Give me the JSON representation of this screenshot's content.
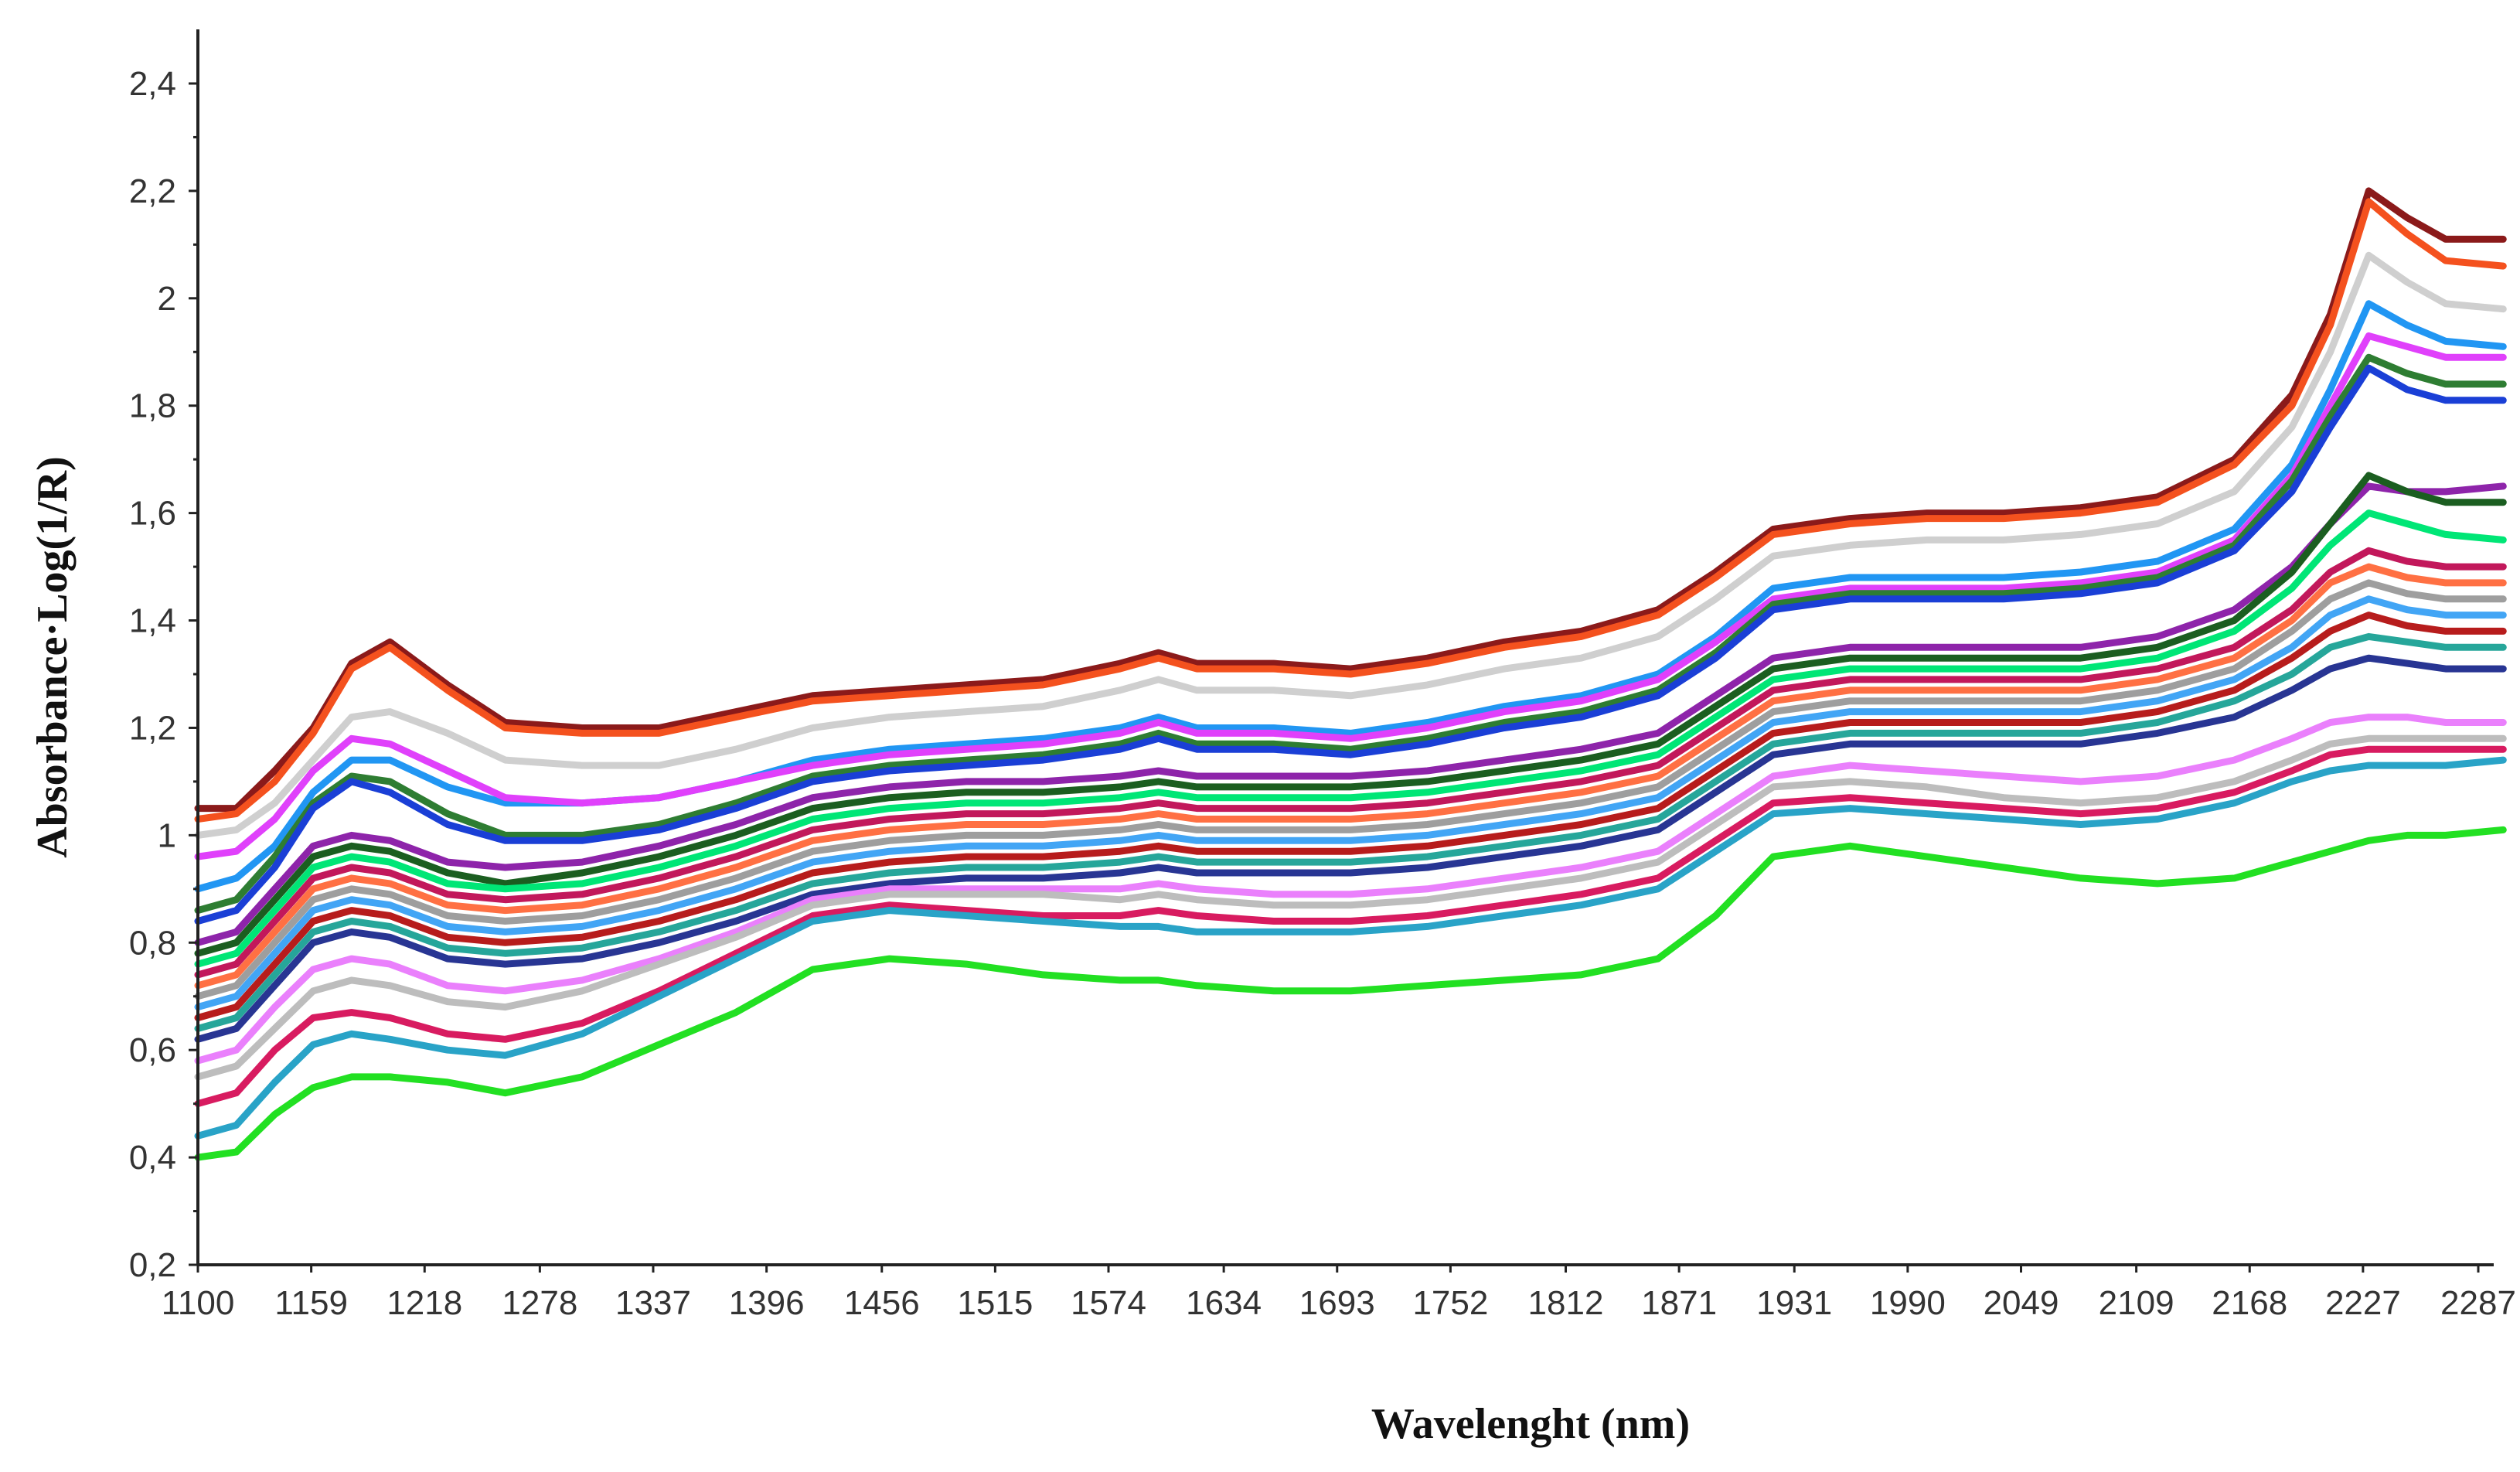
{
  "chart_data": {
    "type": "line",
    "title": "",
    "xlabel": "Wavelenght (nm)",
    "ylabel": "Absorbance·Log(1/R)",
    "x_tick_labels": [
      "1100",
      "1159",
      "1218",
      "1278",
      "1337",
      "1396",
      "1456",
      "1515",
      "1574",
      "1634",
      "1693",
      "1752",
      "1812",
      "1871",
      "1931",
      "1990",
      "2049",
      "2109",
      "2168",
      "2227",
      "2287"
    ],
    "y_tick_labels": [
      "0,2",
      "0,4",
      "0,6",
      "0,8",
      "1",
      "1,2",
      "1,4",
      "1,6",
      "1,8",
      "2",
      "2,2",
      "2,4"
    ],
    "xlim": [
      1100,
      2300
    ],
    "ylim": [
      0.2,
      2.5
    ],
    "grid": false,
    "legend": "none",
    "x": [
      1100,
      1120,
      1140,
      1160,
      1180,
      1200,
      1230,
      1260,
      1300,
      1340,
      1380,
      1420,
      1460,
      1500,
      1540,
      1580,
      1600,
      1620,
      1660,
      1700,
      1740,
      1780,
      1820,
      1860,
      1890,
      1920,
      1960,
      2000,
      2040,
      2080,
      2120,
      2160,
      2190,
      2210,
      2230,
      2250,
      2270,
      2300
    ],
    "series": [
      {
        "color": "#8b1a1a",
        "values": [
          1.05,
          1.05,
          1.12,
          1.2,
          1.32,
          1.36,
          1.28,
          1.21,
          1.2,
          1.2,
          1.23,
          1.26,
          1.27,
          1.28,
          1.29,
          1.32,
          1.34,
          1.32,
          1.32,
          1.31,
          1.33,
          1.36,
          1.38,
          1.42,
          1.49,
          1.57,
          1.59,
          1.6,
          1.6,
          1.61,
          1.63,
          1.7,
          1.82,
          1.97,
          2.2,
          2.15,
          2.11,
          2.11
        ]
      },
      {
        "color": "#f4511e",
        "values": [
          1.03,
          1.04,
          1.1,
          1.19,
          1.31,
          1.35,
          1.27,
          1.2,
          1.19,
          1.19,
          1.22,
          1.25,
          1.26,
          1.27,
          1.28,
          1.31,
          1.33,
          1.31,
          1.31,
          1.3,
          1.32,
          1.35,
          1.37,
          1.41,
          1.48,
          1.56,
          1.58,
          1.59,
          1.59,
          1.6,
          1.62,
          1.69,
          1.8,
          1.95,
          2.18,
          2.12,
          2.07,
          2.06
        ]
      },
      {
        "color": "#cfcfcf",
        "values": [
          1.0,
          1.01,
          1.06,
          1.14,
          1.22,
          1.23,
          1.19,
          1.14,
          1.13,
          1.13,
          1.16,
          1.2,
          1.22,
          1.23,
          1.24,
          1.27,
          1.29,
          1.27,
          1.27,
          1.26,
          1.28,
          1.31,
          1.33,
          1.37,
          1.44,
          1.52,
          1.54,
          1.55,
          1.55,
          1.56,
          1.58,
          1.64,
          1.76,
          1.9,
          2.08,
          2.03,
          1.99,
          1.98
        ]
      },
      {
        "color": "#2196f3",
        "values": [
          0.9,
          0.92,
          0.98,
          1.08,
          1.14,
          1.14,
          1.09,
          1.06,
          1.06,
          1.07,
          1.1,
          1.14,
          1.16,
          1.17,
          1.18,
          1.2,
          1.22,
          1.2,
          1.2,
          1.19,
          1.21,
          1.24,
          1.26,
          1.3,
          1.37,
          1.46,
          1.48,
          1.48,
          1.48,
          1.49,
          1.51,
          1.57,
          1.69,
          1.83,
          1.99,
          1.95,
          1.92,
          1.91
        ]
      },
      {
        "color": "#e040fb",
        "values": [
          0.96,
          0.97,
          1.03,
          1.12,
          1.18,
          1.17,
          1.12,
          1.07,
          1.06,
          1.07,
          1.1,
          1.13,
          1.15,
          1.16,
          1.17,
          1.19,
          1.21,
          1.19,
          1.19,
          1.18,
          1.2,
          1.23,
          1.25,
          1.29,
          1.36,
          1.44,
          1.46,
          1.46,
          1.46,
          1.47,
          1.49,
          1.55,
          1.67,
          1.8,
          1.93,
          1.91,
          1.89,
          1.89
        ]
      },
      {
        "color": "#2e7d32",
        "values": [
          0.86,
          0.88,
          0.96,
          1.06,
          1.11,
          1.1,
          1.04,
          1.0,
          1.0,
          1.02,
          1.06,
          1.11,
          1.13,
          1.14,
          1.15,
          1.17,
          1.19,
          1.17,
          1.17,
          1.16,
          1.18,
          1.21,
          1.23,
          1.27,
          1.34,
          1.43,
          1.45,
          1.45,
          1.45,
          1.46,
          1.48,
          1.54,
          1.66,
          1.78,
          1.89,
          1.86,
          1.84,
          1.84
        ]
      },
      {
        "color": "#1a3fd6",
        "values": [
          0.84,
          0.86,
          0.94,
          1.05,
          1.1,
          1.08,
          1.02,
          0.99,
          0.99,
          1.01,
          1.05,
          1.1,
          1.12,
          1.13,
          1.14,
          1.16,
          1.18,
          1.16,
          1.16,
          1.15,
          1.17,
          1.2,
          1.22,
          1.26,
          1.33,
          1.42,
          1.44,
          1.44,
          1.44,
          1.45,
          1.47,
          1.53,
          1.64,
          1.76,
          1.87,
          1.83,
          1.81,
          1.81
        ]
      },
      {
        "color": "#8e24aa",
        "values": [
          0.8,
          0.82,
          0.9,
          0.98,
          1.0,
          0.99,
          0.95,
          0.94,
          0.95,
          0.98,
          1.02,
          1.07,
          1.09,
          1.1,
          1.1,
          1.11,
          1.12,
          1.11,
          1.11,
          1.11,
          1.12,
          1.14,
          1.16,
          1.19,
          1.26,
          1.33,
          1.35,
          1.35,
          1.35,
          1.35,
          1.37,
          1.42,
          1.5,
          1.58,
          1.65,
          1.64,
          1.64,
          1.65
        ]
      },
      {
        "color": "#1b5e20",
        "values": [
          0.78,
          0.8,
          0.88,
          0.96,
          0.98,
          0.97,
          0.93,
          0.91,
          0.93,
          0.96,
          1.0,
          1.05,
          1.07,
          1.08,
          1.08,
          1.09,
          1.1,
          1.09,
          1.09,
          1.09,
          1.1,
          1.12,
          1.14,
          1.17,
          1.24,
          1.31,
          1.33,
          1.33,
          1.33,
          1.33,
          1.35,
          1.4,
          1.49,
          1.58,
          1.67,
          1.64,
          1.62,
          1.62
        ]
      },
      {
        "color": "#00e676",
        "values": [
          0.76,
          0.78,
          0.86,
          0.94,
          0.96,
          0.95,
          0.91,
          0.9,
          0.91,
          0.94,
          0.98,
          1.03,
          1.05,
          1.06,
          1.06,
          1.07,
          1.08,
          1.07,
          1.07,
          1.07,
          1.08,
          1.1,
          1.12,
          1.15,
          1.22,
          1.29,
          1.31,
          1.31,
          1.31,
          1.31,
          1.33,
          1.38,
          1.46,
          1.54,
          1.6,
          1.58,
          1.56,
          1.55
        ]
      },
      {
        "color": "#c2185b",
        "values": [
          0.74,
          0.76,
          0.84,
          0.92,
          0.94,
          0.93,
          0.89,
          0.88,
          0.89,
          0.92,
          0.96,
          1.01,
          1.03,
          1.04,
          1.04,
          1.05,
          1.06,
          1.05,
          1.05,
          1.05,
          1.06,
          1.08,
          1.1,
          1.13,
          1.2,
          1.27,
          1.29,
          1.29,
          1.29,
          1.29,
          1.31,
          1.35,
          1.42,
          1.49,
          1.53,
          1.51,
          1.5,
          1.5
        ]
      },
      {
        "color": "#ff7043",
        "values": [
          0.72,
          0.74,
          0.82,
          0.9,
          0.92,
          0.91,
          0.87,
          0.86,
          0.87,
          0.9,
          0.94,
          0.99,
          1.01,
          1.02,
          1.02,
          1.03,
          1.04,
          1.03,
          1.03,
          1.03,
          1.04,
          1.06,
          1.08,
          1.11,
          1.18,
          1.25,
          1.27,
          1.27,
          1.27,
          1.27,
          1.29,
          1.33,
          1.4,
          1.47,
          1.5,
          1.48,
          1.47,
          1.47
        ]
      },
      {
        "color": "#9e9e9e",
        "values": [
          0.7,
          0.72,
          0.8,
          0.88,
          0.9,
          0.89,
          0.85,
          0.84,
          0.85,
          0.88,
          0.92,
          0.97,
          0.99,
          1.0,
          1.0,
          1.01,
          1.02,
          1.01,
          1.01,
          1.01,
          1.02,
          1.04,
          1.06,
          1.09,
          1.16,
          1.23,
          1.25,
          1.25,
          1.25,
          1.25,
          1.27,
          1.31,
          1.38,
          1.44,
          1.47,
          1.45,
          1.44,
          1.44
        ]
      },
      {
        "color": "#42a5f5",
        "values": [
          0.68,
          0.7,
          0.78,
          0.86,
          0.88,
          0.87,
          0.83,
          0.82,
          0.83,
          0.86,
          0.9,
          0.95,
          0.97,
          0.98,
          0.98,
          0.99,
          1.0,
          0.99,
          0.99,
          0.99,
          1.0,
          1.02,
          1.04,
          1.07,
          1.14,
          1.21,
          1.23,
          1.23,
          1.23,
          1.23,
          1.25,
          1.29,
          1.35,
          1.41,
          1.44,
          1.42,
          1.41,
          1.41
        ]
      },
      {
        "color": "#b71c1c",
        "values": [
          0.66,
          0.68,
          0.76,
          0.84,
          0.86,
          0.85,
          0.81,
          0.8,
          0.81,
          0.84,
          0.88,
          0.93,
          0.95,
          0.96,
          0.96,
          0.97,
          0.98,
          0.97,
          0.97,
          0.97,
          0.98,
          1.0,
          1.02,
          1.05,
          1.12,
          1.19,
          1.21,
          1.21,
          1.21,
          1.21,
          1.23,
          1.27,
          1.33,
          1.38,
          1.41,
          1.39,
          1.38,
          1.38
        ]
      },
      {
        "color": "#26a69a",
        "values": [
          0.64,
          0.66,
          0.74,
          0.82,
          0.84,
          0.83,
          0.79,
          0.78,
          0.79,
          0.82,
          0.86,
          0.91,
          0.93,
          0.94,
          0.94,
          0.95,
          0.96,
          0.95,
          0.95,
          0.95,
          0.96,
          0.98,
          1.0,
          1.03,
          1.1,
          1.17,
          1.19,
          1.19,
          1.19,
          1.19,
          1.21,
          1.25,
          1.3,
          1.35,
          1.37,
          1.36,
          1.35,
          1.35
        ]
      },
      {
        "color": "#283593",
        "values": [
          0.62,
          0.64,
          0.72,
          0.8,
          0.82,
          0.81,
          0.77,
          0.76,
          0.77,
          0.8,
          0.84,
          0.89,
          0.91,
          0.92,
          0.92,
          0.93,
          0.94,
          0.93,
          0.93,
          0.93,
          0.94,
          0.96,
          0.98,
          1.01,
          1.08,
          1.15,
          1.17,
          1.17,
          1.17,
          1.17,
          1.19,
          1.22,
          1.27,
          1.31,
          1.33,
          1.32,
          1.31,
          1.31
        ]
      },
      {
        "color": "#ea80fc",
        "values": [
          0.58,
          0.6,
          0.68,
          0.75,
          0.77,
          0.76,
          0.72,
          0.71,
          0.73,
          0.77,
          0.82,
          0.88,
          0.9,
          0.9,
          0.9,
          0.9,
          0.91,
          0.9,
          0.89,
          0.89,
          0.9,
          0.92,
          0.94,
          0.97,
          1.04,
          1.11,
          1.13,
          1.12,
          1.11,
          1.1,
          1.11,
          1.14,
          1.18,
          1.21,
          1.22,
          1.22,
          1.21,
          1.21
        ]
      },
      {
        "color": "#bdbdbd",
        "values": [
          0.55,
          0.57,
          0.64,
          0.71,
          0.73,
          0.72,
          0.69,
          0.68,
          0.71,
          0.76,
          0.81,
          0.87,
          0.89,
          0.89,
          0.89,
          0.88,
          0.89,
          0.88,
          0.87,
          0.87,
          0.88,
          0.9,
          0.92,
          0.95,
          1.02,
          1.09,
          1.1,
          1.09,
          1.07,
          1.06,
          1.07,
          1.1,
          1.14,
          1.17,
          1.18,
          1.18,
          1.18,
          1.18
        ]
      },
      {
        "color": "#d81b60",
        "values": [
          0.5,
          0.52,
          0.6,
          0.66,
          0.67,
          0.66,
          0.63,
          0.62,
          0.65,
          0.71,
          0.78,
          0.85,
          0.87,
          0.86,
          0.85,
          0.85,
          0.86,
          0.85,
          0.84,
          0.84,
          0.85,
          0.87,
          0.89,
          0.92,
          0.99,
          1.06,
          1.07,
          1.06,
          1.05,
          1.04,
          1.05,
          1.08,
          1.12,
          1.15,
          1.16,
          1.16,
          1.16,
          1.16
        ]
      },
      {
        "color": "#29a3c7",
        "values": [
          0.44,
          0.46,
          0.54,
          0.61,
          0.63,
          0.62,
          0.6,
          0.59,
          0.63,
          0.7,
          0.77,
          0.84,
          0.86,
          0.85,
          0.84,
          0.83,
          0.83,
          0.82,
          0.82,
          0.82,
          0.83,
          0.85,
          0.87,
          0.9,
          0.97,
          1.04,
          1.05,
          1.04,
          1.03,
          1.02,
          1.03,
          1.06,
          1.1,
          1.12,
          1.13,
          1.13,
          1.13,
          1.14
        ]
      },
      {
        "color": "#22e022",
        "values": [
          0.4,
          0.41,
          0.48,
          0.53,
          0.55,
          0.55,
          0.54,
          0.52,
          0.55,
          0.61,
          0.67,
          0.75,
          0.77,
          0.76,
          0.74,
          0.73,
          0.73,
          0.72,
          0.71,
          0.71,
          0.72,
          0.73,
          0.74,
          0.77,
          0.85,
          0.96,
          0.98,
          0.96,
          0.94,
          0.92,
          0.91,
          0.92,
          0.95,
          0.97,
          0.99,
          1.0,
          1.0,
          1.01
        ]
      }
    ]
  }
}
